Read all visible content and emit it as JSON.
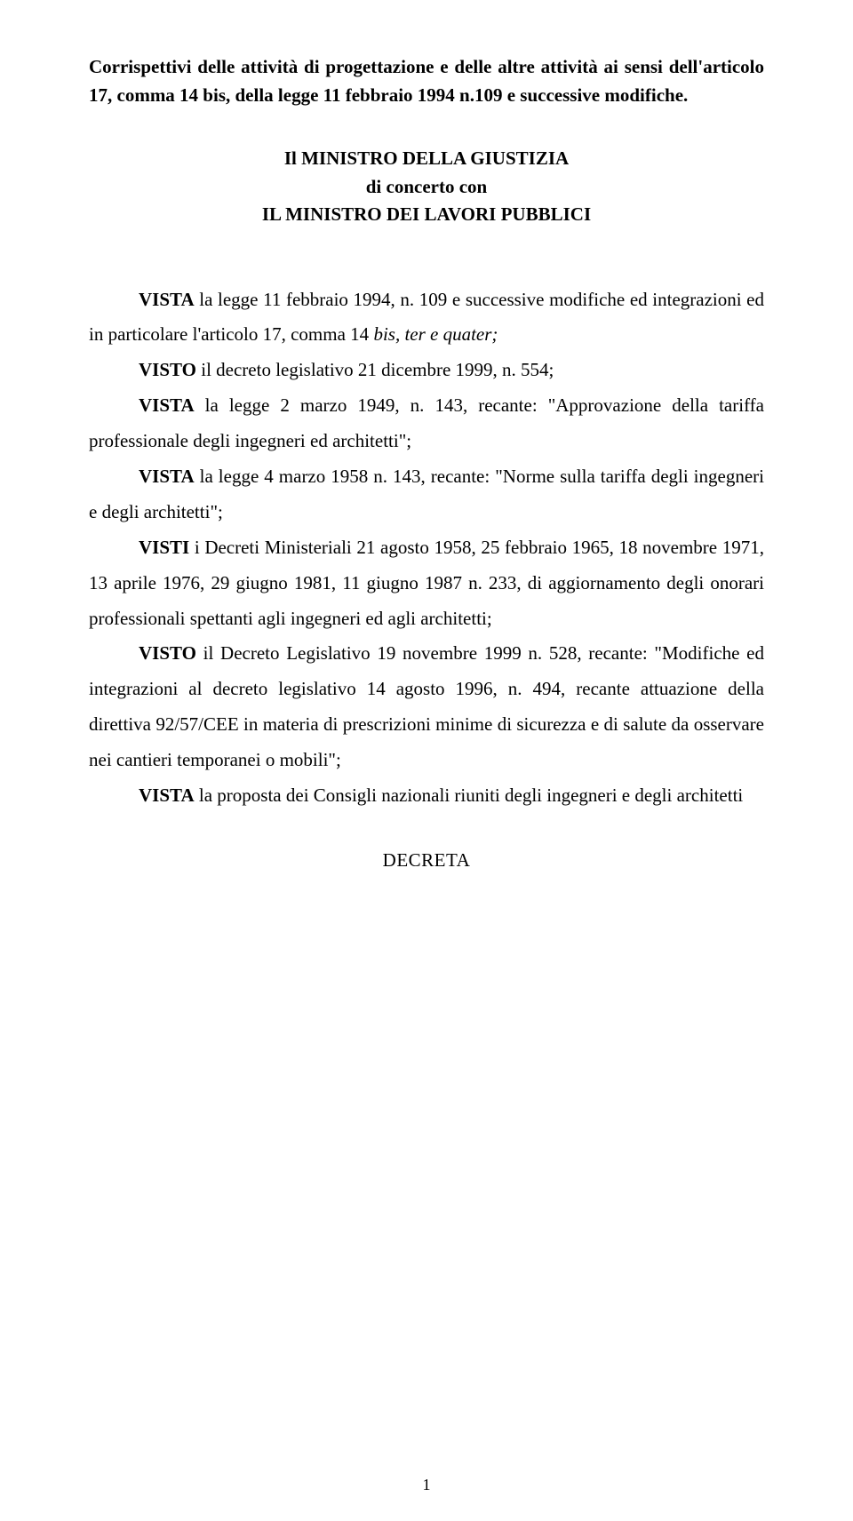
{
  "title": "Corrispettivi delle attività di progettazione e delle altre attività ai sensi dell'articolo 17, comma 14 bis, della legge 11 febbraio 1994 n.109 e successive modifiche.",
  "ministers": {
    "line1": "Il MINISTRO DELLA GIUSTIZIA",
    "line2": "di concerto con",
    "line3": "IL MINISTRO DEI LAVORI PUBBLICI"
  },
  "body": {
    "p1_lead": "VISTA",
    "p1_rest": " la legge 11 febbraio 1994, n. 109 e successive modifiche ed integrazioni ed in particolare l'articolo 17, comma 14 ",
    "p1_italic": "bis, ter e quater;",
    "p2_lead": "VISTO",
    "p2_rest": " il decreto legislativo 21 dicembre 1999, n. 554;",
    "p3_lead": "VISTA",
    "p3_rest": " la legge 2 marzo 1949, n. 143, recante: \"Approvazione della tariffa professionale degli ingegneri ed architetti\";",
    "p4_lead": "VISTA",
    "p4_rest": " la legge 4 marzo 1958 n. 143, recante: \"Norme sulla tariffa degli ingegneri e degli architetti\";",
    "p5_lead": "VISTI",
    "p5_rest": " i Decreti Ministeriali 21 agosto 1958, 25 febbraio 1965, 18 novembre 1971, 13 aprile 1976, 29 giugno 1981, 11 giugno 1987 n. 233, di aggiornamento degli onorari professionali spettanti agli ingegneri ed agli architetti;",
    "p6_lead": "VISTO",
    "p6_rest": " il Decreto Legislativo 19 novembre 1999 n. 528, recante: \"Modifiche ed integrazioni al decreto legislativo 14 agosto 1996, n. 494, recante attuazione della direttiva 92/57/CEE in materia di prescrizioni minime di sicurezza e di salute da osservare nei cantieri temporanei o mobili\";",
    "p7_lead": "VISTA",
    "p7_rest": " la proposta dei Consigli nazionali riuniti degli ingegneri e degli architetti"
  },
  "decreta": "DECRETA",
  "page_number": "1"
}
